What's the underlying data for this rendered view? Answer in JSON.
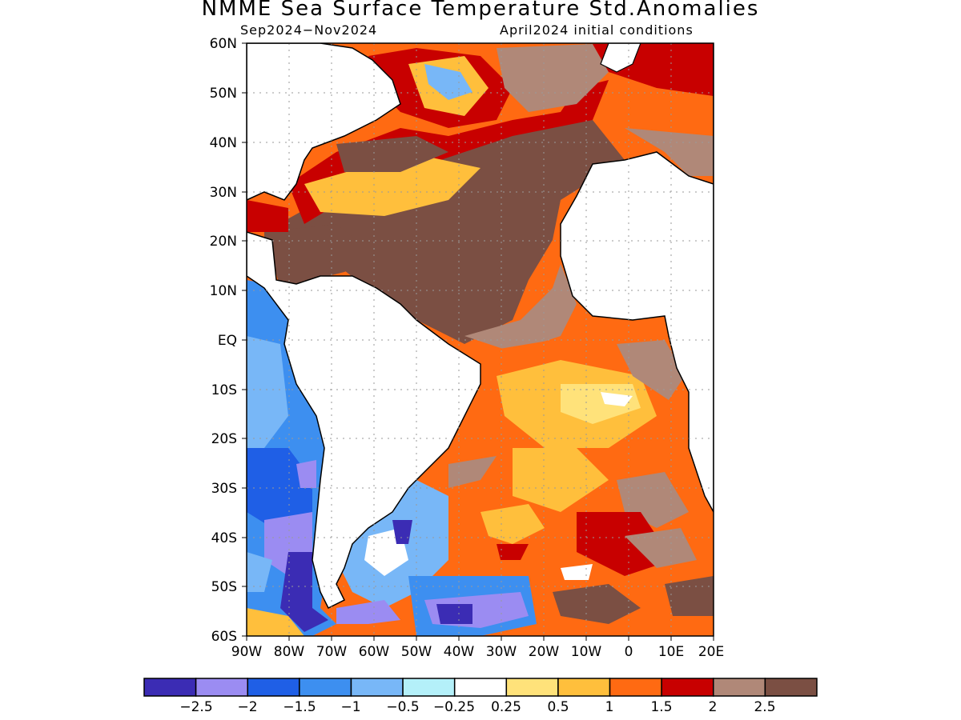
{
  "header": {
    "title": "NMME Sea Surface Temperature Std.Anomalies",
    "period": "Sep2024−Nov2024",
    "init": "April2024 initial conditions"
  },
  "map": {
    "lat_labels": [
      "60N",
      "50N",
      "40N",
      "30N",
      "20N",
      "10N",
      "EQ",
      "10S",
      "20S",
      "30S",
      "40S",
      "50S",
      "60S"
    ],
    "lon_labels": [
      "90W",
      "80W",
      "70W",
      "60W",
      "50W",
      "40W",
      "30W",
      "20W",
      "10W",
      "0",
      "10E",
      "20E"
    ],
    "lat_range": [
      -60,
      60
    ],
    "lon_range": [
      -90,
      20
    ],
    "grid": true
  },
  "colorbar": {
    "labels": [
      "−2.5",
      "−2",
      "−1.5",
      "−1",
      "−0.5",
      "−0.25",
      "0.25",
      "0.5",
      "1",
      "1.5",
      "2",
      "2.5"
    ],
    "colors": [
      "#3b2cb4",
      "#9b8cf2",
      "#1f5fe6",
      "#3d8ff0",
      "#78b7f7",
      "#b4f0f9",
      "#ffffff",
      "#ffe27a",
      "#ffbf3c",
      "#ff6a12",
      "#c80000",
      "#b08878",
      "#7b4f43"
    ]
  }
}
